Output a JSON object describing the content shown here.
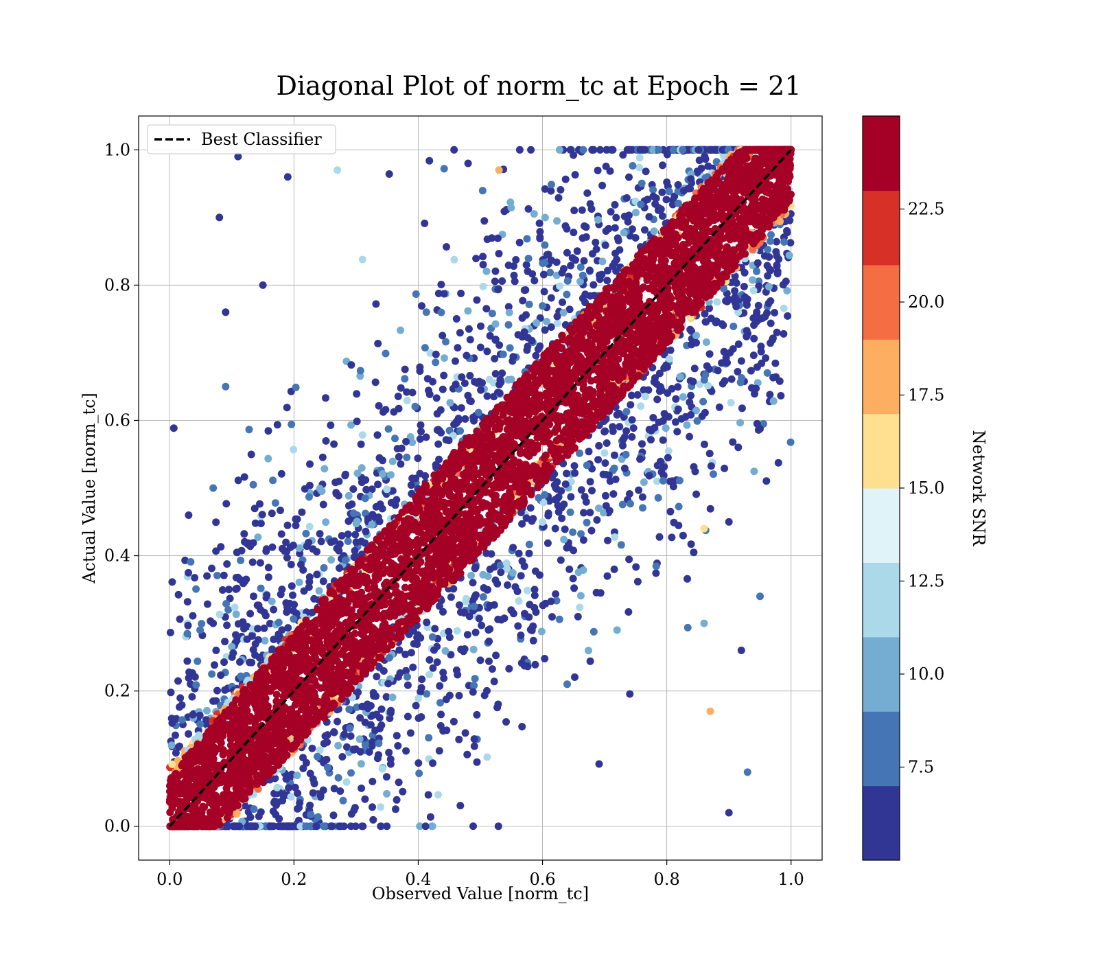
{
  "chart_data": {
    "type": "scatter",
    "title": "Diagonal Plot of norm_tc at Epoch = 21",
    "xlabel": "Observed Value [norm_tc]",
    "ylabel": "Actual Value [norm_tc]",
    "xlim": [
      -0.05,
      1.05
    ],
    "ylim": [
      -0.05,
      1.05
    ],
    "xticks": [
      "0.0",
      "0.2",
      "0.4",
      "0.6",
      "0.8",
      "1.0"
    ],
    "yticks": [
      "0.0",
      "0.2",
      "0.4",
      "0.6",
      "0.8",
      "1.0"
    ],
    "grid": true,
    "legend": {
      "placement": "upper-left",
      "entries": [
        "Best Classifier"
      ]
    },
    "reference_line": {
      "name": "Best Classifier",
      "from": [
        0,
        0
      ],
      "to": [
        1,
        1
      ],
      "style": "dashed",
      "color": "#000000"
    },
    "colorbar": {
      "label": "Network SNR",
      "range": [
        5,
        25
      ],
      "ticks": [
        "7.5",
        "10.0",
        "12.5",
        "15.0",
        "17.5",
        "20.0",
        "22.5"
      ],
      "colors": [
        "#313695",
        "#4575b4",
        "#74add1",
        "#abd9e9",
        "#e0f3f8",
        "#fee090",
        "#fdae61",
        "#f46d43",
        "#d73027",
        "#a50026"
      ]
    },
    "points_description_note": "Dense scatter: high-SNR points (dark red) concentrated in a band around y = x; low-SNR points (dark blue) scattered widely off-diagonal.",
    "sample_points": [
      {
        "x": 0.08,
        "y": 0.9,
        "snr": 6
      },
      {
        "x": 0.11,
        "y": 0.99,
        "snr": 6
      },
      {
        "x": 0.09,
        "y": 0.76,
        "snr": 6
      },
      {
        "x": 0.15,
        "y": 0.8,
        "snr": 6
      },
      {
        "x": 0.19,
        "y": 0.96,
        "snr": 6
      },
      {
        "x": 0.27,
        "y": 0.97,
        "snr": 11
      },
      {
        "x": 0.53,
        "y": 0.97,
        "snr": 18
      },
      {
        "x": 0.86,
        "y": 0.44,
        "snr": 16
      },
      {
        "x": 0.87,
        "y": 0.17,
        "snr": 18
      },
      {
        "x": 0.95,
        "y": 0.34,
        "snr": 8
      },
      {
        "x": 0.93,
        "y": 0.08,
        "snr": 8
      },
      {
        "x": 0.86,
        "y": 0.3,
        "snr": 10
      },
      {
        "x": 0.95,
        "y": 0.75,
        "snr": 6
      },
      {
        "x": 0.9,
        "y": 0.02,
        "snr": 6
      },
      {
        "x": 0.07,
        "y": 0.5,
        "snr": 8
      },
      {
        "x": 0.06,
        "y": 0.37,
        "snr": 6
      },
      {
        "x": 0.09,
        "y": 0.65,
        "snr": 7
      },
      {
        "x": 0.9,
        "y": 0.45,
        "snr": 6
      },
      {
        "x": 0.92,
        "y": 0.26,
        "snr": 6
      },
      {
        "x": 0.72,
        "y": 0.29,
        "snr": 10
      }
    ]
  }
}
